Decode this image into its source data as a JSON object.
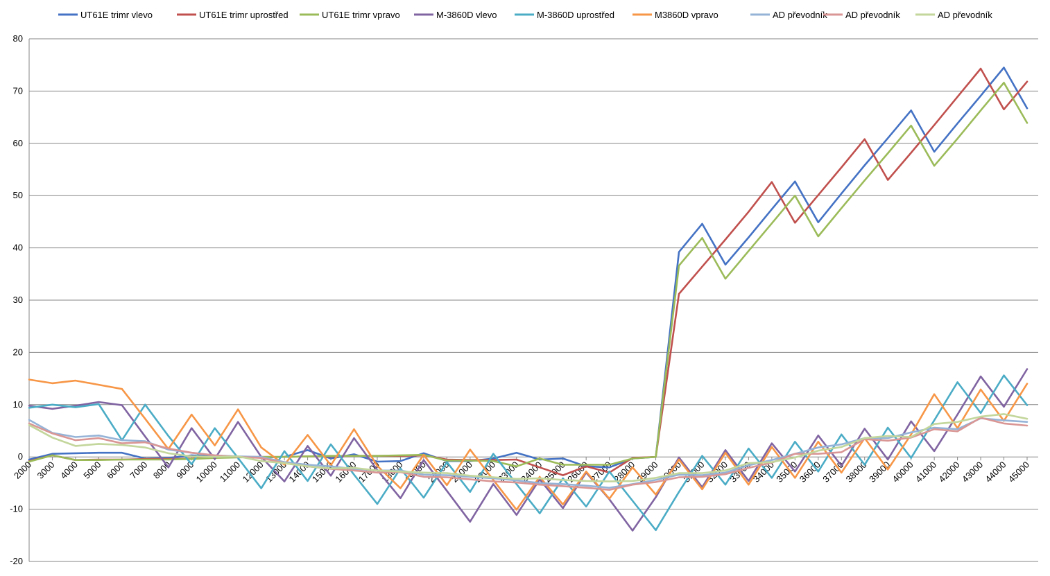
{
  "chart_data": {
    "type": "line",
    "title": "",
    "xlabel": "",
    "ylabel": "",
    "ylim": [
      -20,
      80
    ],
    "yticks": [
      -20,
      -10,
      0,
      10,
      20,
      30,
      40,
      50,
      60,
      70,
      80
    ],
    "grid": "horizontal",
    "legend_position": "top",
    "categories": [
      "2000",
      "3000",
      "4000",
      "5000",
      "6000",
      "7000",
      "8000",
      "9000",
      "10000",
      "11000",
      "12000",
      "13000",
      "14000",
      "15000",
      "16000",
      "17000",
      "18000",
      "19000",
      "20000",
      "21000",
      "22000",
      "23000",
      "24000",
      "25000",
      "26000",
      "27000",
      "28000",
      "29000",
      "30000",
      "31000",
      "32000",
      "33000",
      "34000",
      "35000",
      "36000",
      "37000",
      "38000",
      "39000",
      "40000",
      "41000",
      "42000",
      "43000",
      "44000",
      "45000"
    ],
    "series": [
      {
        "name": "UT61E trimr vlevo",
        "color": "#4472C4",
        "values": [
          -0.5,
          0.6,
          0.7,
          0.8,
          0.8,
          -0.3,
          -0.2,
          0.3,
          0.1,
          0.0,
          -0.1,
          0.0,
          1.3,
          -0.3,
          0.5,
          -0.9,
          -0.8,
          0.7,
          -0.8,
          -0.8,
          -0.3,
          0.8,
          -0.5,
          -0.3,
          -1.8,
          -2.0,
          -0.3,
          0.0,
          39.2,
          44.6,
          36.8,
          42.0,
          47.4,
          52.7,
          44.9,
          50.4,
          55.8,
          61.0,
          66.3,
          58.4,
          63.8,
          69.1,
          74.5,
          66.7
        ]
      },
      {
        "name": "UT61E trimr uprostřed",
        "color": "#C0504D",
        "values": [
          -0.8,
          0.3,
          -0.6,
          -0.5,
          -0.5,
          -0.4,
          -0.4,
          -0.3,
          0.0,
          0.0,
          0.0,
          0.0,
          0.1,
          0.1,
          0.2,
          0.2,
          0.2,
          0.3,
          -0.5,
          -0.6,
          -0.6,
          -0.5,
          -2.0,
          -3.5,
          -1.8,
          -3.0,
          -0.2,
          0.0,
          31.2,
          36.4,
          41.6,
          46.9,
          52.6,
          44.8,
          50.1,
          55.4,
          60.8,
          53.0,
          58.2,
          63.5,
          68.9,
          74.3,
          66.5,
          71.8
        ]
      },
      {
        "name": "UT61E trimr vpravo",
        "color": "#9BBB59",
        "values": [
          -0.9,
          0.3,
          -0.6,
          -0.6,
          -0.5,
          -0.5,
          -0.5,
          -0.4,
          -0.2,
          -0.1,
          0.0,
          0.0,
          0.1,
          0.2,
          0.2,
          0.2,
          0.3,
          0.4,
          -0.7,
          -0.7,
          -0.8,
          -1.8,
          -0.3,
          -1.5,
          -1.5,
          -1.5,
          -0.3,
          0.0,
          36.6,
          41.9,
          34.1,
          39.4,
          44.7,
          50.0,
          42.2,
          47.6,
          52.9,
          58.1,
          63.4,
          55.7,
          60.9,
          66.3,
          71.6,
          63.9
        ]
      },
      {
        "name": "M-3860D vlevo",
        "color": "#8064A2",
        "values": [
          9.8,
          9.2,
          9.8,
          10.5,
          9.9,
          3.9,
          -2.0,
          5.5,
          -0.4,
          6.7,
          0.0,
          -4.7,
          2.1,
          -3.6,
          3.6,
          -2.5,
          -7.9,
          -0.6,
          -6.5,
          -12.4,
          -5.2,
          -11.1,
          -4.3,
          -9.8,
          -3.0,
          -8.1,
          -14.1,
          -7.7,
          -0.1,
          -5.8,
          1.3,
          -4.6,
          2.6,
          -2.8,
          4.1,
          -1.7,
          5.4,
          -0.5,
          6.8,
          1.1,
          8.1,
          15.4,
          9.6,
          16.8
        ]
      },
      {
        "name": "M-3860D uprostřed",
        "color": "#4BACC6",
        "values": [
          9.4,
          10.0,
          9.5,
          10.1,
          3.2,
          10.0,
          4.0,
          -1.4,
          5.5,
          -0.2,
          -6.0,
          1.1,
          -4.6,
          2.4,
          -3.4,
          -9.0,
          -2.2,
          -7.8,
          -1.0,
          -6.7,
          0.6,
          -5.2,
          -10.8,
          -4.1,
          -9.5,
          -2.8,
          -8.4,
          -14.0,
          -6.7,
          0.2,
          -5.3,
          1.6,
          -4.0,
          2.9,
          -2.8,
          4.3,
          -1.5,
          5.6,
          -0.2,
          7.0,
          14.3,
          8.4,
          15.6,
          9.9
        ]
      },
      {
        "name": "M3860D vpravo",
        "color": "#F79646",
        "values": [
          14.8,
          14.1,
          14.6,
          13.8,
          13.0,
          7.3,
          1.5,
          8.1,
          2.2,
          9.1,
          1.8,
          -1.5,
          4.2,
          -1.6,
          5.3,
          -1.7,
          -6.0,
          0.4,
          -5.4,
          1.4,
          -4.4,
          -10.1,
          -3.8,
          -9.1,
          -2.8,
          -8.0,
          -2.0,
          -7.2,
          -0.5,
          -6.2,
          0.8,
          -5.3,
          1.9,
          -4.0,
          2.9,
          -3.0,
          3.6,
          -2.4,
          4.3,
          12.0,
          5.5,
          12.9,
          6.9,
          14.0
        ]
      },
      {
        "name": "AD převodník",
        "color": "#95B3D7",
        "values": [
          7.1,
          4.6,
          3.8,
          4.1,
          3.2,
          3.0,
          1.4,
          0.8,
          0.3,
          0.1,
          0.0,
          -1.0,
          -1.5,
          -1.8,
          -2.3,
          -2.6,
          -2.6,
          -3.4,
          -3.5,
          -3.8,
          -4.1,
          -4.5,
          -5.0,
          -5.2,
          -5.5,
          -5.9,
          -5.2,
          -4.4,
          -3.4,
          -3.5,
          -3.0,
          -1.6,
          -0.6,
          0.6,
          1.8,
          2.4,
          3.6,
          3.6,
          4.7,
          5.6,
          5.3,
          7.4,
          7.0,
          6.7
        ]
      },
      {
        "name": "AD převodník",
        "color": "#D99694",
        "values": [
          6.4,
          4.5,
          3.2,
          3.6,
          2.6,
          2.8,
          1.6,
          0.8,
          0.3,
          0.0,
          -0.2,
          -1.2,
          -1.8,
          -2.3,
          -2.6,
          -3.0,
          -2.9,
          -3.8,
          -3.9,
          -4.3,
          -4.7,
          -4.9,
          -5.3,
          -5.6,
          -5.9,
          -6.3,
          -5.3,
          -4.8,
          -3.9,
          -3.8,
          -3.3,
          -2.1,
          -1.1,
          0.6,
          0.6,
          0.9,
          3.4,
          3.1,
          3.7,
          5.3,
          4.9,
          7.5,
          6.4,
          6.0
        ]
      },
      {
        "name": "AD převodník",
        "color": "#C3D69B",
        "values": [
          6.1,
          3.7,
          2.1,
          2.5,
          2.3,
          1.8,
          0.7,
          0.1,
          0.0,
          0.1,
          -0.8,
          -1.2,
          -1.8,
          -2.2,
          -2.1,
          -2.6,
          -2.8,
          -3.0,
          -3.1,
          -3.6,
          -3.9,
          -4.2,
          -4.1,
          -4.4,
          -4.6,
          -4.7,
          -4.6,
          -4.0,
          -3.1,
          -3.1,
          -2.6,
          -1.2,
          -1.0,
          -0.1,
          1.2,
          1.9,
          3.6,
          4.0,
          3.8,
          6.3,
          6.7,
          7.7,
          8.2,
          7.3
        ]
      }
    ]
  }
}
